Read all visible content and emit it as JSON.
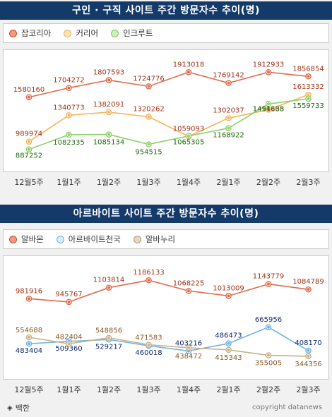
{
  "footer": {
    "source_label": "백한",
    "copyright": "copyright datanews"
  },
  "chart_data": [
    {
      "type": "line",
      "title": "구인 · 구직 사이트 주간 방문자수 추이(명)",
      "categories": [
        "12월5주",
        "1월1주",
        "1월2주",
        "1월3주",
        "1월4주",
        "2월1주",
        "2월2주",
        "2월3주"
      ],
      "ylim": [
        800000,
        2000000
      ],
      "grid": false,
      "legend_position": "top-left",
      "series": [
        {
          "name": "잡코리아",
          "color": "#e06a4a",
          "label_color": "#a3341a",
          "values": [
            1580160,
            1704272,
            1807593,
            1724776,
            1913018,
            1769142,
            1912933,
            1856854
          ]
        },
        {
          "name": "커리어",
          "color": "#f5b55a",
          "label_color": "#a3341a",
          "values": [
            989974,
            1340773,
            1382091,
            1320262,
            1059093,
            1302037,
            1414638,
            1613332
          ]
        },
        {
          "name": "인크루트",
          "color": "#8cd16a",
          "label_color": "#1f6b12",
          "values": [
            887252,
            1082335,
            1085134,
            954515,
            1065305,
            1168922,
            1491165,
            1559733
          ]
        }
      ]
    },
    {
      "type": "line",
      "title": "아르바이트 사이트 주간 방문자수 추이(명)",
      "categories": [
        "12월5주",
        "1월1주",
        "1월2주",
        "1월3주",
        "1월4주",
        "2월1주",
        "2월2주",
        "2월3주"
      ],
      "ylim": [
        250000,
        1250000
      ],
      "grid": false,
      "legend_position": "top-left",
      "series": [
        {
          "name": "알바몬",
          "color": "#e06a4a",
          "label_color": "#a3341a",
          "values": [
            981916,
            945767,
            1103814,
            1186133,
            1068225,
            1013009,
            1143779,
            1084789
          ]
        },
        {
          "name": "아르바이트천국",
          "color": "#6fb3e0",
          "label_color": "#0e2a6b",
          "values": [
            483404,
            509360,
            529217,
            460018,
            403216,
            486473,
            665956,
            408170
          ]
        },
        {
          "name": "알바누리",
          "color": "#c8b08a",
          "label_color": "#8a5a2a",
          "values": [
            554688,
            482404,
            548856,
            471583,
            438472,
            415343,
            355005,
            344356
          ]
        }
      ]
    }
  ]
}
